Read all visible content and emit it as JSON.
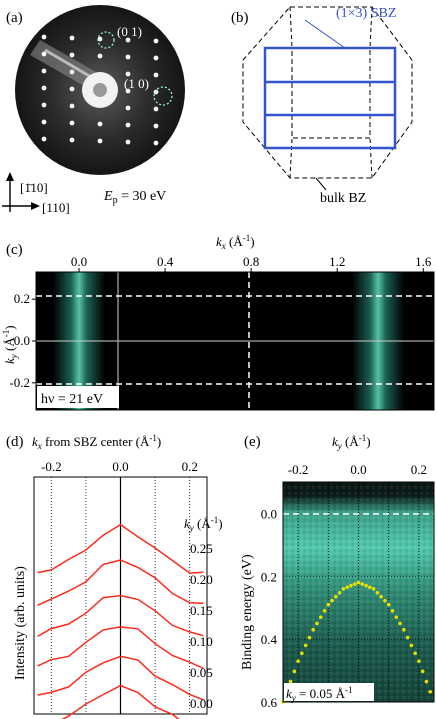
{
  "panels": {
    "a": {
      "label": "(a)",
      "spot_01": "(0 1)",
      "spot_10": "(1 0)",
      "dir_vertical": "[1̄10]",
      "dir_horizontal": "[110]",
      "energy": "E",
      "energy_sub": "p",
      "energy_value": " = 30 eV"
    },
    "b": {
      "label": "(b)",
      "sbz_label": "(1×3) SBZ",
      "bulk_label": "bulk BZ",
      "colors": {
        "sbz": "#3355cc",
        "bulk": "#000000"
      }
    },
    "c": {
      "label": "(c)",
      "xlabel": "k",
      "xlabel_sub": "x",
      "xlabel_unit": " (Å",
      "xlabel_exp": "-1",
      "xlabel_close": ")",
      "ylabel": "k",
      "ylabel_sub": "y",
      "ylabel_unit": " (Å",
      "ylabel_exp": "-1",
      "ylabel_close": ")",
      "photon": "hν = 21 eV",
      "xticks": [
        "0.0",
        "0.4",
        "0.8",
        "1.2",
        "1.6"
      ],
      "yticks": [
        "0.2",
        "0.0",
        "-0.2"
      ]
    },
    "d": {
      "label": "(d)",
      "xlabel": "k",
      "xlabel_sub": "x",
      "xlabel_text": " from SBZ center (Å",
      "xlabel_exp": "-1",
      "xlabel_close": ")",
      "ylabel": "Intensity (arb. units)",
      "ky_label": "k",
      "ky_sub": "y",
      "ky_unit": " (Å",
      "ky_exp": "-1",
      "ky_close": ")",
      "xticks": [
        "-0.2",
        "-0.1",
        "0.0",
        "0.1",
        "0.2"
      ],
      "curve_color": "#ff2a1a"
    },
    "e": {
      "label": "(e)",
      "xlabel": "k",
      "xlabel_sub": "y",
      "xlabel_unit": " (Å",
      "xlabel_exp": "-1",
      "xlabel_close": ")",
      "ylabel": "Binding energy (eV)",
      "annotation": "k",
      "annotation_sub": "y",
      "annotation_value": " = 0.05 Å",
      "annotation_exp": "-1",
      "xticks": [
        "-0.2",
        "0.0",
        "0.2"
      ],
      "yticks": [
        "0.0",
        "0.2",
        "0.4",
        "0.6"
      ],
      "dispersion_color": "#e8e000"
    }
  },
  "chart_data": [
    {
      "type": "heatmap",
      "panel": "c",
      "xlabel": "kx (Å-1)",
      "ylabel": "ky (Å-1)",
      "xlim": [
        -0.2,
        1.65
      ],
      "ylim": [
        -0.33,
        0.33
      ],
      "intensity_bands_kx": [
        0.0,
        1.39
      ],
      "dashed_lines_ky": [
        0.23,
        -0.23
      ],
      "dashed_line_kx": 0.7
    },
    {
      "type": "line",
      "panel": "d",
      "xlabel": "kx from SBZ center (Å-1)",
      "ylabel": "Intensity (arb. units)",
      "xlim": [
        -0.25,
        0.25
      ],
      "series": [
        {
          "name": "0.25",
          "x": [
            -0.24,
            -0.2,
            -0.15,
            -0.1,
            -0.05,
            0.0,
            0.05,
            0.1,
            0.15,
            0.2,
            0.24
          ],
          "values": [
            0.55,
            0.7,
            0.95,
            1.4,
            1.9,
            2.2,
            1.9,
            1.4,
            0.95,
            0.6,
            0.5
          ]
        },
        {
          "name": "0.20",
          "x": [
            -0.24,
            -0.2,
            -0.15,
            -0.1,
            -0.05,
            0.0,
            0.05,
            0.1,
            0.15,
            0.2,
            0.24
          ],
          "values": [
            0.55,
            0.7,
            0.95,
            1.4,
            1.9,
            2.1,
            1.9,
            1.4,
            0.95,
            0.6,
            0.5
          ]
        },
        {
          "name": "0.15",
          "x": [
            -0.24,
            -0.2,
            -0.15,
            -0.1,
            -0.05,
            0.0,
            0.05,
            0.1,
            0.15,
            0.2,
            0.24
          ],
          "values": [
            0.55,
            0.7,
            0.95,
            1.35,
            1.8,
            2.0,
            1.8,
            1.35,
            0.95,
            0.6,
            0.5
          ]
        },
        {
          "name": "0.10",
          "x": [
            -0.24,
            -0.2,
            -0.15,
            -0.1,
            -0.05,
            0.0,
            0.05,
            0.1,
            0.15,
            0.2,
            0.24
          ],
          "values": [
            0.55,
            0.7,
            0.95,
            1.35,
            1.8,
            2.0,
            1.8,
            1.35,
            0.95,
            0.6,
            0.5
          ]
        },
        {
          "name": "0.05",
          "x": [
            -0.24,
            -0.2,
            -0.15,
            -0.1,
            -0.05,
            0.0,
            0.05,
            0.1,
            0.15,
            0.2,
            0.24
          ],
          "values": [
            0.55,
            0.7,
            0.95,
            1.35,
            1.8,
            2.0,
            1.8,
            1.35,
            0.95,
            0.6,
            0.5
          ]
        },
        {
          "name": "0.00",
          "x": [
            -0.24,
            -0.2,
            -0.15,
            -0.1,
            -0.05,
            0.0,
            0.05,
            0.1,
            0.15,
            0.2,
            0.24
          ],
          "values": [
            0.55,
            0.7,
            0.95,
            1.35,
            1.8,
            2.0,
            1.8,
            1.35,
            0.95,
            0.6,
            0.5
          ]
        }
      ]
    },
    {
      "type": "heatmap",
      "panel": "e",
      "xlabel": "ky (Å-1)",
      "ylabel": "Binding energy (eV)",
      "xlim": [
        -0.25,
        0.25
      ],
      "ylim": [
        0.6,
        -0.1
      ],
      "dispersion": {
        "ky": [
          -0.25,
          -0.2,
          -0.15,
          -0.1,
          -0.05,
          0.0,
          0.05,
          0.1,
          0.15,
          0.2,
          0.25
        ],
        "energy": [
          0.6,
          0.47,
          0.37,
          0.29,
          0.24,
          0.22,
          0.24,
          0.29,
          0.37,
          0.47,
          0.6
        ]
      }
    }
  ]
}
